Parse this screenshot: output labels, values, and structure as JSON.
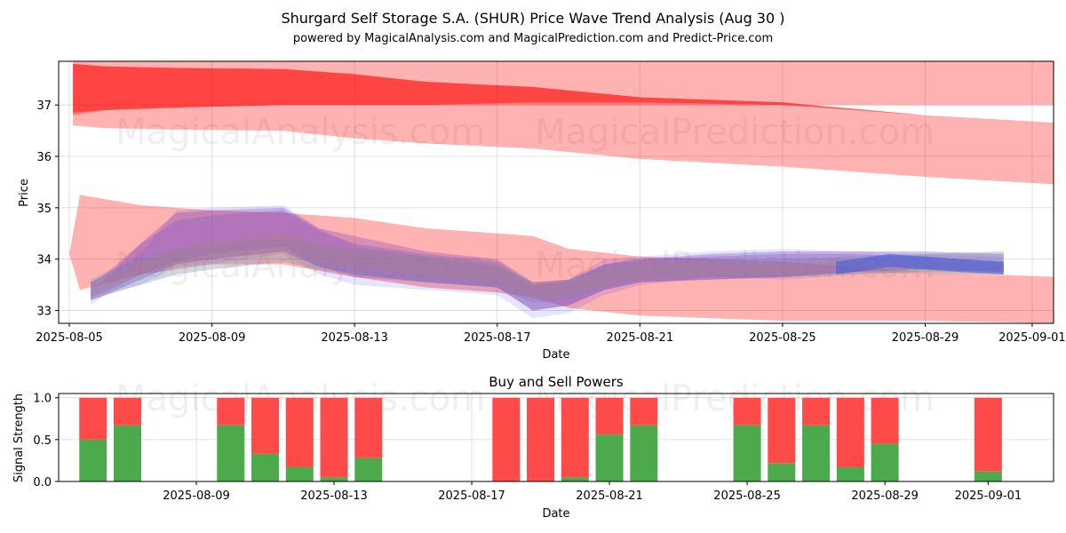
{
  "chart_data": [
    {
      "type": "area",
      "title": "Shurgard Self Storage S.A. (SHUR) Price Wave Trend Analysis (Aug 30 )",
      "subtitle": "powered by MagicalAnalysis.com and MagicalPrediction.com and Predict-Price.com",
      "xlabel": "Date",
      "ylabel": "Price",
      "ylim": [
        32.75,
        37.85
      ],
      "yticks": [
        33,
        34,
        35,
        36,
        37
      ],
      "xlim_days": [
        -0.3,
        27.6
      ],
      "xticks": [
        {
          "day": 0,
          "label": "2025-08-05"
        },
        {
          "day": 4,
          "label": "2025-08-09"
        },
        {
          "day": 8,
          "label": "2025-08-13"
        },
        {
          "day": 12,
          "label": "2025-08-17"
        },
        {
          "day": 16,
          "label": "2025-08-21"
        },
        {
          "day": 20,
          "label": "2025-08-25"
        },
        {
          "day": 24,
          "label": "2025-08-29"
        },
        {
          "day": 27,
          "label": "2025-09-01"
        }
      ],
      "watermarks": [
        "MagicalAnalysis.com",
        "MagicalPrediction.com"
      ],
      "red_bands": [
        {
          "x": [
            0.1,
            1,
            3,
            6,
            8,
            10,
            13,
            16,
            20,
            24,
            27.8
          ],
          "upper": [
            37.85,
            37.85,
            37.85,
            37.85,
            37.85,
            37.85,
            37.85,
            37.85,
            37.85,
            37.85,
            37.85
          ],
          "lower": [
            36.8,
            36.9,
            36.95,
            37.0,
            37.0,
            37.0,
            37.0,
            37.0,
            37.0,
            37.0,
            37.0
          ],
          "opacity": 0.3
        },
        {
          "x": [
            0.1,
            1,
            3,
            6,
            8,
            10,
            13,
            16,
            20,
            24,
            27.8
          ],
          "upper": [
            37.8,
            37.75,
            37.72,
            37.7,
            37.6,
            37.45,
            37.35,
            37.15,
            37.05,
            36.8,
            36.65
          ],
          "lower": [
            36.6,
            36.55,
            36.52,
            36.5,
            36.35,
            36.25,
            36.15,
            35.95,
            35.8,
            35.6,
            35.45
          ],
          "opacity": 0.3
        },
        {
          "x": [
            0.1,
            1,
            3,
            6,
            8,
            10,
            13,
            16,
            20,
            24,
            27.8
          ],
          "upper": [
            37.8,
            37.75,
            37.72,
            37.7,
            37.6,
            37.45,
            37.35,
            37.15,
            37.05,
            36.8,
            36.65
          ],
          "lower": [
            36.85,
            36.9,
            36.95,
            37.0,
            37.0,
            37.0,
            37.05,
            37.05,
            37.0,
            36.8,
            36.65
          ],
          "opacity": 0.45
        },
        {
          "x": [
            0,
            0.3,
            2,
            4,
            6,
            8,
            10,
            12,
            13,
            14,
            16,
            18,
            20,
            22,
            24,
            27.8
          ],
          "upper": [
            34.1,
            35.25,
            35.05,
            34.95,
            34.9,
            34.8,
            34.6,
            34.5,
            34.45,
            34.2,
            34.05,
            34.0,
            33.95,
            33.85,
            33.75,
            33.65
          ],
          "lower": [
            34.1,
            33.4,
            33.7,
            33.9,
            33.9,
            33.65,
            33.45,
            33.35,
            33.25,
            33.05,
            32.9,
            32.85,
            32.8,
            32.8,
            32.8,
            32.75
          ],
          "opacity": 0.3
        }
      ],
      "wave_bands": [
        {
          "x": [
            0.6,
            1,
            2,
            3,
            4,
            6,
            7,
            8,
            10,
            12,
            13,
            14,
            15,
            16,
            18,
            20,
            22,
            24,
            26.2
          ],
          "upper": [
            33.55,
            33.7,
            34.1,
            34.95,
            35.0,
            35.05,
            34.6,
            34.25,
            34.05,
            33.85,
            33.5,
            33.6,
            34.0,
            34.05,
            34.15,
            34.2,
            34.15,
            34.1,
            34.05
          ],
          "lower": [
            33.1,
            33.3,
            33.5,
            33.85,
            33.9,
            34.1,
            33.7,
            33.5,
            33.4,
            33.3,
            32.85,
            32.95,
            33.3,
            33.5,
            33.65,
            33.6,
            33.7,
            33.75,
            33.7
          ],
          "color": "#0000ff",
          "opacity": 0.1
        },
        {
          "x": [
            0.6,
            1,
            2,
            3,
            4,
            6,
            7,
            8,
            10,
            12,
            13,
            14,
            15,
            16,
            18,
            20,
            22,
            24,
            26.2
          ],
          "upper": [
            33.45,
            33.6,
            34.3,
            34.75,
            34.85,
            34.95,
            34.55,
            34.3,
            34.1,
            33.95,
            33.5,
            33.55,
            33.9,
            34.0,
            34.05,
            34.1,
            34.1,
            34.05,
            33.95
          ],
          "lower": [
            33.25,
            33.35,
            33.7,
            33.95,
            34.1,
            34.25,
            33.85,
            33.65,
            33.55,
            33.45,
            33.0,
            33.1,
            33.4,
            33.55,
            33.6,
            33.65,
            33.75,
            33.75,
            33.7
          ],
          "color": "#9966cc",
          "opacity": 0.35
        },
        {
          "x": [
            0.6,
            1,
            2,
            3,
            4,
            6,
            7,
            8,
            10,
            12,
            13,
            14,
            15,
            16,
            18,
            20,
            22,
            24,
            26.2
          ],
          "upper": [
            33.6,
            33.75,
            34.0,
            34.2,
            34.3,
            34.4,
            34.3,
            34.2,
            34.05,
            33.9,
            33.55,
            33.6,
            33.85,
            33.95,
            34.0,
            34.0,
            34.05,
            34.1,
            34.15
          ],
          "lower": [
            33.2,
            33.3,
            33.5,
            33.7,
            33.8,
            33.95,
            33.8,
            33.7,
            33.55,
            33.45,
            33.15,
            33.2,
            33.45,
            33.6,
            33.65,
            33.65,
            33.7,
            33.75,
            33.75
          ],
          "color": "#8aa0b4",
          "opacity": 0.4
        },
        {
          "x": [
            0.6,
            1,
            2,
            3,
            4,
            6,
            7,
            8,
            10,
            12,
            13,
            14,
            15,
            16,
            18,
            20,
            22,
            24,
            26.2
          ],
          "upper": [
            33.5,
            33.6,
            33.95,
            34.2,
            34.35,
            34.5,
            34.3,
            34.2,
            34.05,
            33.9,
            33.55,
            33.55,
            33.8,
            33.9,
            33.95,
            33.9,
            34.0,
            33.95,
            33.9
          ],
          "lower": [
            33.3,
            33.4,
            33.7,
            33.9,
            34.05,
            34.1,
            33.95,
            33.85,
            33.7,
            33.55,
            33.25,
            33.3,
            33.5,
            33.6,
            33.7,
            33.65,
            33.75,
            33.7,
            33.7
          ],
          "color": "#c8a070",
          "opacity": 0.3
        },
        {
          "x": [
            0.6,
            1,
            2,
            3,
            4,
            6,
            7,
            8,
            10,
            12,
            13,
            14,
            15,
            16,
            18,
            20,
            22,
            24,
            26.2
          ],
          "upper": [
            33.55,
            33.7,
            34.3,
            34.9,
            34.95,
            35.0,
            34.6,
            34.45,
            34.15,
            34.0,
            33.55,
            33.6,
            33.9,
            34.0,
            34.1,
            34.15,
            34.15,
            34.15,
            34.1
          ],
          "lower": [
            33.2,
            33.3,
            33.6,
            33.9,
            34.0,
            34.15,
            33.85,
            33.7,
            33.55,
            33.45,
            33.0,
            33.1,
            33.4,
            33.55,
            33.6,
            33.65,
            33.75,
            33.8,
            33.75
          ],
          "color": "#7a3fb0",
          "opacity": 0.3
        },
        {
          "x": [
            21.5,
            22,
            23,
            24,
            25,
            26.2
          ],
          "upper": [
            33.95,
            34.0,
            34.1,
            34.05,
            34.0,
            33.95
          ],
          "lower": [
            33.7,
            33.75,
            33.85,
            33.8,
            33.75,
            33.7
          ],
          "color": "#3355dd",
          "opacity": 0.5
        }
      ]
    },
    {
      "type": "bar",
      "title": "Buy and Sell Powers",
      "xlabel": "Date",
      "ylabel": "Signal Strength",
      "ylim": [
        0,
        1.05
      ],
      "yticks": [
        0.0,
        0.5,
        1.0
      ],
      "ytick_labels": [
        "0.0",
        "0.5",
        "1.0"
      ],
      "xlim_days": [
        0.0,
        28.9
      ],
      "xticks": [
        {
          "day": 4,
          "label": "2025-08-09"
        },
        {
          "day": 8,
          "label": "2025-08-13"
        },
        {
          "day": 12,
          "label": "2025-08-17"
        },
        {
          "day": 16,
          "label": "2025-08-21"
        },
        {
          "day": 20,
          "label": "2025-08-25"
        },
        {
          "day": 24,
          "label": "2025-08-29"
        },
        {
          "day": 27,
          "label": "2025-09-01"
        }
      ],
      "watermarks": [
        "MagicalAnalysis.com",
        "MagicalPrediction.com"
      ],
      "series": [
        {
          "name": "Buy",
          "color": "#4caa4c"
        },
        {
          "name": "Sell",
          "color": "#ff4a4a"
        }
      ],
      "days": [
        1,
        2,
        5,
        6,
        7,
        8,
        9,
        13,
        14,
        15,
        16,
        17,
        20,
        21,
        22,
        23,
        24,
        27
      ],
      "buy": [
        0.5,
        0.67,
        0.67,
        0.33,
        0.17,
        0.05,
        0.28,
        0.0,
        0.0,
        0.05,
        0.56,
        0.67,
        0.67,
        0.22,
        0.67,
        0.17,
        0.45,
        0.12
      ],
      "sell": [
        0.5,
        0.33,
        0.33,
        0.67,
        0.83,
        0.95,
        0.72,
        1.0,
        1.0,
        0.95,
        0.44,
        0.33,
        0.33,
        0.78,
        0.33,
        0.83,
        0.55,
        0.88
      ]
    }
  ]
}
